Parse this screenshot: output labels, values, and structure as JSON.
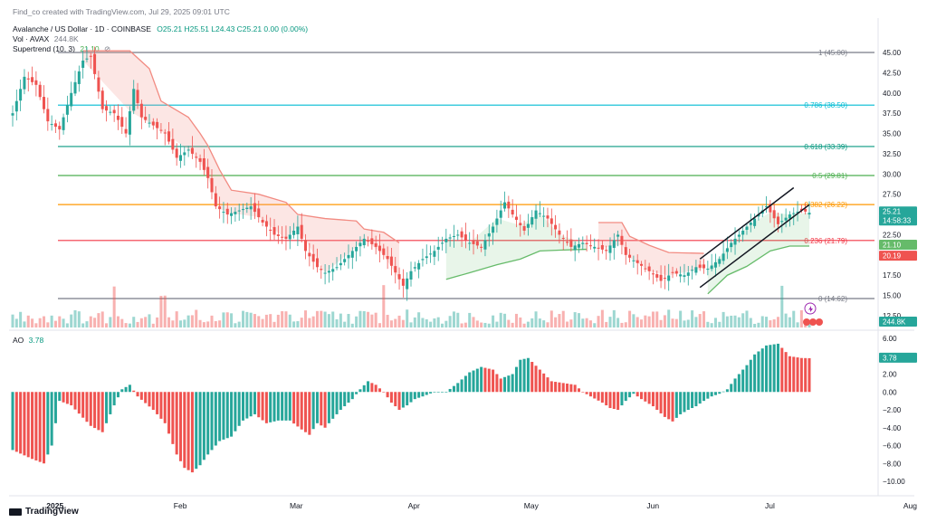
{
  "header": {
    "creator_line": "Find_co created with TradingView.com, Jul 29, 2025 09:01 UTC",
    "symbol": "Avalanche / US Dollar · 1D · COINBASE",
    "ohlc": "O25.21 H25.51 L24.43 C25.21 0.00 (0.00%)",
    "vol_label": "Vol · AVAX",
    "vol_value": "244.8K",
    "supertrend_label": "Supertrend (10, 3)",
    "supertrend_value": "21.10",
    "ao_label": "AO",
    "ao_value": "3.78"
  },
  "footer": {
    "logo_text": "TradingView"
  },
  "colors": {
    "up": "#26a69a",
    "down": "#ef5350",
    "supertrend_down": "#f28b82",
    "supertrend_up": "#66bb6a",
    "fib_1": "#787b86",
    "fib_786": "#00bcd4",
    "fib_618": "#089981",
    "fib_5": "#4caf50",
    "fib_382": "#ff9800",
    "fib_236": "#f23645",
    "fib_0": "#787b86"
  },
  "chart_data": {
    "type": "candlestick",
    "x_ticks": [
      "2025",
      "Feb",
      "Mar",
      "Apr",
      "May",
      "Jun",
      "Jul",
      "Aug"
    ],
    "y_ticks": [
      "45.00",
      "42.50",
      "40.00",
      "37.50",
      "35.00",
      "32.50",
      "30.00",
      "27.50",
      "25.00",
      "22.50",
      "20.00",
      "17.50",
      "15.00",
      "12.50"
    ],
    "price_scale": [
      12.5,
      45.0
    ],
    "fibonacci": [
      {
        "label": "1 (45.00)",
        "value": 45.0
      },
      {
        "label": "0.786 (38.50)",
        "value": 38.5
      },
      {
        "label": "0.618 (33.39)",
        "value": 33.39
      },
      {
        "label": "0.5 (29.81)",
        "value": 29.81
      },
      {
        "label": "0.382 (26.22)",
        "value": 26.22
      },
      {
        "label": "0.236 (21.79)",
        "value": 21.79
      },
      {
        "label": "0 (14.62)",
        "value": 14.62
      }
    ],
    "price_labels": [
      {
        "text": "25.21",
        "value": 25.21
      },
      {
        "text": "14:58:33",
        "value": 24.4
      },
      {
        "text": "21.10",
        "value": 21.1
      },
      {
        "text": "20.19",
        "value": 20.19
      }
    ],
    "volume_label": "244.8K",
    "ao_ticks": [
      "6.00",
      "4.00",
      "2.00",
      "0.00",
      "−2.00",
      "−4.00",
      "−6.00",
      "−8.00",
      "−10.00"
    ],
    "ao_label": "3.78",
    "ao_range": [
      -10,
      6
    ],
    "close_path": [
      [
        0,
        37.5
      ],
      [
        3,
        42
      ],
      [
        6,
        41
      ],
      [
        9,
        36.5
      ],
      [
        12,
        35.5
      ],
      [
        15,
        40
      ],
      [
        18,
        44
      ],
      [
        20,
        44.5
      ],
      [
        23,
        38
      ],
      [
        26,
        37.5
      ],
      [
        29,
        35
      ],
      [
        31,
        40.5
      ],
      [
        33,
        37
      ],
      [
        36,
        36
      ],
      [
        39,
        35
      ],
      [
        42,
        32
      ],
      [
        45,
        33
      ],
      [
        48,
        31.5
      ],
      [
        50,
        29.5
      ],
      [
        52,
        26
      ],
      [
        55,
        25
      ],
      [
        58,
        25.5
      ],
      [
        61,
        26
      ],
      [
        64,
        24
      ],
      [
        67,
        22.5
      ],
      [
        70,
        22
      ],
      [
        73,
        23.5
      ],
      [
        75,
        20.5
      ],
      [
        78,
        18.5
      ],
      [
        80,
        17.8
      ],
      [
        83,
        18.5
      ],
      [
        86,
        20
      ],
      [
        90,
        22
      ],
      [
        93,
        21
      ],
      [
        96,
        19.5
      ],
      [
        99,
        17
      ],
      [
        100,
        16.2
      ],
      [
        102,
        18
      ],
      [
        105,
        19.5
      ],
      [
        108,
        20.5
      ],
      [
        111,
        22
      ],
      [
        114,
        22.5
      ],
      [
        117,
        21.5
      ],
      [
        120,
        21
      ],
      [
        123,
        23.5
      ],
      [
        126,
        26.5
      ],
      [
        128,
        25
      ],
      [
        131,
        23
      ],
      [
        134,
        25.5
      ],
      [
        137,
        24.5
      ],
      [
        140,
        22.5
      ],
      [
        143,
        21
      ],
      [
        146,
        21.5
      ],
      [
        149,
        21
      ],
      [
        152,
        20.5
      ],
      [
        155,
        22.5
      ],
      [
        157,
        20
      ],
      [
        160,
        19
      ],
      [
        163,
        18
      ],
      [
        166,
        16.8
      ],
      [
        169,
        17.8
      ],
      [
        172,
        17.5
      ],
      [
        175,
        18.5
      ],
      [
        178,
        18.3
      ],
      [
        181,
        19.5
      ],
      [
        184,
        21.5
      ],
      [
        187,
        23
      ],
      [
        190,
        24.5
      ],
      [
        193,
        26
      ],
      [
        196,
        23.8
      ],
      [
        199,
        25
      ],
      [
        202,
        25.5
      ],
      [
        204,
        25.21
      ]
    ],
    "supertrend_down_path": [
      [
        18,
        45.2
      ],
      [
        30,
        45.2
      ],
      [
        35,
        43
      ],
      [
        38,
        39
      ],
      [
        45,
        37
      ],
      [
        48,
        35
      ],
      [
        50,
        33.5
      ],
      [
        53,
        30.5
      ],
      [
        56,
        28
      ],
      [
        63,
        27.5
      ],
      [
        70,
        26.5
      ],
      [
        73,
        25
      ],
      [
        80,
        24.5
      ],
      [
        88,
        24.2
      ],
      [
        90,
        23.2
      ],
      [
        95,
        22.8
      ],
      [
        99,
        21.5
      ]
    ],
    "supertrend_down2_path": [
      [
        150,
        24
      ],
      [
        156,
        24
      ],
      [
        158,
        22.3
      ],
      [
        163,
        21.2
      ],
      [
        168,
        20.3
      ],
      [
        177,
        20.2
      ]
    ],
    "supertrend_up_path": [
      [
        111,
        17
      ],
      [
        117,
        17.8
      ],
      [
        124,
        18.8
      ],
      [
        130,
        19.5
      ],
      [
        135,
        20.5
      ],
      [
        140,
        20.6
      ],
      [
        147,
        20.7
      ]
    ],
    "supertrend_up2_path": [
      [
        178,
        15.2
      ],
      [
        183,
        17.5
      ],
      [
        188,
        18.6
      ],
      [
        194,
        20.5
      ],
      [
        199,
        21.1
      ],
      [
        204,
        21.1
      ]
    ],
    "channel_upper": [
      [
        176,
        19.5
      ],
      [
        200,
        28.3
      ]
    ],
    "channel_lower": [
      [
        176,
        16.0
      ],
      [
        204,
        26.2
      ]
    ],
    "ao_path": [
      [
        0,
        -6.5
      ],
      [
        5,
        -7.5
      ],
      [
        8,
        -8
      ],
      [
        10,
        -6
      ],
      [
        12,
        -1
      ],
      [
        15,
        -1.5
      ],
      [
        20,
        -3.8
      ],
      [
        23,
        -4.5
      ],
      [
        26,
        -1.5
      ],
      [
        28,
        0.3
      ],
      [
        30,
        0.8
      ],
      [
        32,
        -0.5
      ],
      [
        36,
        -2
      ],
      [
        39,
        -3.5
      ],
      [
        42,
        -7
      ],
      [
        44,
        -8.5
      ],
      [
        46,
        -9
      ],
      [
        48,
        -8.2
      ],
      [
        50,
        -7
      ],
      [
        53,
        -5.5
      ],
      [
        56,
        -5
      ],
      [
        59,
        -3.2
      ],
      [
        62,
        -2.5
      ],
      [
        65,
        -3.5
      ],
      [
        68,
        -3.2
      ],
      [
        71,
        -3.2
      ],
      [
        74,
        -4.2
      ],
      [
        76,
        -4.8
      ],
      [
        78,
        -3.5
      ],
      [
        80,
        -4
      ],
      [
        82,
        -3
      ],
      [
        84,
        -2
      ],
      [
        87,
        -0.8
      ],
      [
        89,
        0.3
      ],
      [
        91,
        1.2
      ],
      [
        93,
        0.8
      ],
      [
        95,
        0
      ],
      [
        97,
        -1.2
      ],
      [
        99,
        -2
      ],
      [
        101,
        -1.5
      ],
      [
        103,
        -0.8
      ],
      [
        105,
        -0.5
      ],
      [
        108,
        0
      ],
      [
        111,
        0
      ],
      [
        114,
        1
      ],
      [
        117,
        2.2
      ],
      [
        120,
        2.8
      ],
      [
        123,
        2.5
      ],
      [
        125,
        1.5
      ],
      [
        128,
        2
      ],
      [
        130,
        3.6
      ],
      [
        132,
        3.8
      ],
      [
        135,
        2.5
      ],
      [
        138,
        1.2
      ],
      [
        141,
        1
      ],
      [
        144,
        0.8
      ],
      [
        146,
        0
      ],
      [
        148,
        -0.5
      ],
      [
        151,
        -1.2
      ],
      [
        153,
        -1.8
      ],
      [
        155,
        -2
      ],
      [
        157,
        -1
      ],
      [
        159,
        -0.2
      ],
      [
        161,
        -0.8
      ],
      [
        164,
        -1.6
      ],
      [
        167,
        -2.8
      ],
      [
        169,
        -3.3
      ],
      [
        171,
        -2.5
      ],
      [
        173,
        -2
      ],
      [
        175,
        -1.6
      ],
      [
        177,
        -1
      ],
      [
        179,
        -0.5
      ],
      [
        181,
        -0.2
      ],
      [
        183,
        0.3
      ],
      [
        185,
        1.5
      ],
      [
        188,
        3
      ],
      [
        190,
        4.2
      ],
      [
        193,
        5.2
      ],
      [
        196,
        5.4
      ],
      [
        199,
        4
      ],
      [
        202,
        3.8
      ],
      [
        204,
        3.78
      ]
    ]
  }
}
